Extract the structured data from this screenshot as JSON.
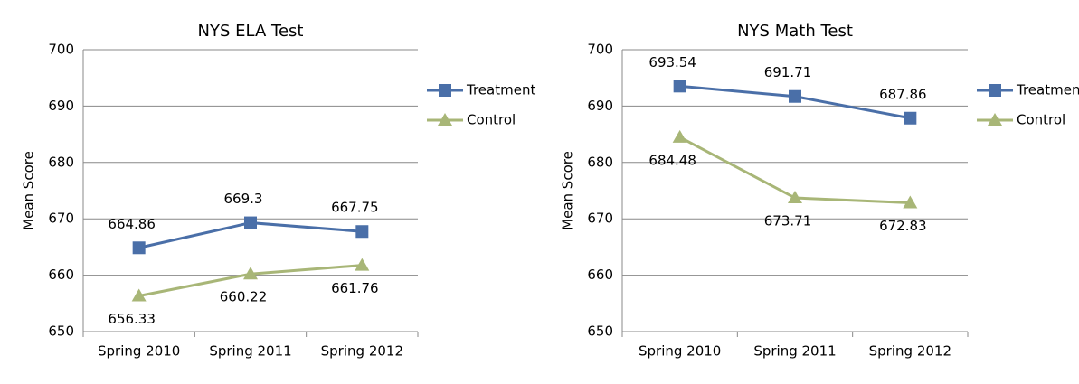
{
  "chart_data": [
    {
      "type": "line",
      "title": "NYS ELA Test",
      "y_label": "Mean Score",
      "categories": [
        "Spring 2010",
        "Spring 2011",
        "Spring 2012"
      ],
      "series": [
        {
          "name": "Treatment",
          "color": "#4a6fa8",
          "marker": "square",
          "values": [
            664.86,
            669.3,
            667.75
          ]
        },
        {
          "name": "Control",
          "color": "#a8b677",
          "marker": "triangle",
          "values": [
            656.33,
            660.22,
            661.76
          ]
        }
      ],
      "ylim": [
        650,
        700
      ],
      "yticks": [
        650,
        660,
        670,
        680,
        690,
        700
      ],
      "grid": true,
      "legend": "right"
    },
    {
      "type": "line",
      "title": "NYS Math Test",
      "y_label": "Mean Score",
      "categories": [
        "Spring 2010",
        "Spring 2011",
        "Spring 2012"
      ],
      "series": [
        {
          "name": "Treatment",
          "color": "#4a6fa8",
          "marker": "square",
          "values": [
            693.54,
            691.71,
            687.86
          ]
        },
        {
          "name": "Control",
          "color": "#a8b677",
          "marker": "triangle",
          "values": [
            684.48,
            673.71,
            672.83
          ]
        }
      ],
      "ylim": [
        650,
        700
      ],
      "yticks": [
        650,
        660,
        670,
        680,
        690,
        700
      ],
      "grid": true,
      "legend": "right"
    }
  ]
}
